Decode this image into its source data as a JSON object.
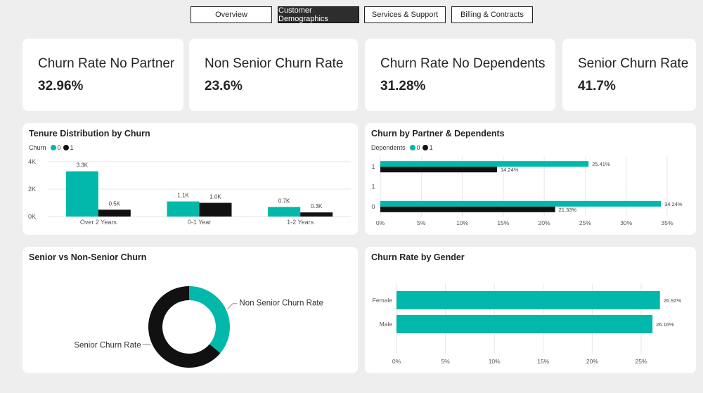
{
  "tabs": [
    {
      "label": "Overview",
      "active": false
    },
    {
      "label": "Customer Demographics",
      "active": true
    },
    {
      "label": "Services & Support",
      "active": false
    },
    {
      "label": "Billing & Contracts",
      "active": false
    }
  ],
  "kpis": [
    {
      "title": "Churn Rate No Partner",
      "value": "32.96%"
    },
    {
      "title": "Non Senior Churn Rate",
      "value": "23.6%"
    },
    {
      "title": "Churn Rate No Dependents",
      "value": "31.28%"
    },
    {
      "title": "Senior Churn Rate",
      "value": "41.7%"
    }
  ],
  "colors": {
    "teal": "#01b8aa",
    "black": "#111111",
    "grid": "#e6e6e6"
  },
  "tenure": {
    "title": "Tenure Distribution by Churn",
    "legend_title": "Churn",
    "legend": [
      "0",
      "1"
    ]
  },
  "partner": {
    "title": "Churn by Partner & Dependents",
    "legend_title": "Dependents",
    "legend": [
      "0",
      "1"
    ]
  },
  "senior": {
    "title": "Senior vs Non-Senior Churn"
  },
  "gender": {
    "title": "Churn Rate by Gender"
  },
  "chart_data": [
    {
      "type": "bar",
      "title": "Tenure Distribution by Churn",
      "categories": [
        "Over 2 Years",
        "0-1 Year",
        "1-2 Years"
      ],
      "series": [
        {
          "name": "0",
          "values": [
            3300,
            1100,
            700
          ],
          "labels": [
            "3.3K",
            "1.1K",
            "0.7K"
          ]
        },
        {
          "name": "1",
          "values": [
            500,
            1000,
            300
          ],
          "labels": [
            "0.5K",
            "1.0K",
            "0.3K"
          ]
        }
      ],
      "ylim": [
        0,
        4000
      ],
      "yticks": [
        0,
        2000,
        4000
      ],
      "ytick_labels": [
        "0K",
        "2K",
        "4K"
      ],
      "grid": true
    },
    {
      "type": "bar",
      "orientation": "horizontal",
      "title": "Churn by Partner & Dependents",
      "categories": [
        "1",
        "1",
        "0"
      ],
      "series": [
        {
          "name": "0",
          "values": [
            25.41,
            null,
            34.24
          ],
          "labels": [
            "25.41%",
            "",
            "34.24%"
          ]
        },
        {
          "name": "1",
          "values": [
            14.24,
            null,
            21.33
          ],
          "labels": [
            "14.24%",
            "",
            "21.33%"
          ]
        }
      ],
      "xlim": [
        0,
        35
      ],
      "xticks": [
        0,
        5,
        10,
        15,
        20,
        25,
        30,
        35
      ],
      "xtick_labels": [
        "0%",
        "5%",
        "10%",
        "15%",
        "20%",
        "25%",
        "30%",
        "35%"
      ],
      "grid": true
    },
    {
      "type": "pie",
      "donut": true,
      "title": "Senior vs Non-Senior Churn",
      "labels": [
        "Non Senior Churn Rate",
        "Senior Churn Rate"
      ],
      "values": [
        23.6,
        41.7
      ]
    },
    {
      "type": "bar",
      "orientation": "horizontal",
      "title": "Churn Rate by Gender",
      "categories": [
        "Female",
        "Male"
      ],
      "values": [
        26.92,
        26.16
      ],
      "labels": [
        "26.92%",
        "26.16%"
      ],
      "xlim": [
        0,
        25
      ],
      "xticks": [
        0,
        5,
        10,
        15,
        20,
        25
      ],
      "xtick_labels": [
        "0%",
        "5%",
        "10%",
        "15%",
        "20%",
        "25%"
      ],
      "grid": true
    }
  ]
}
